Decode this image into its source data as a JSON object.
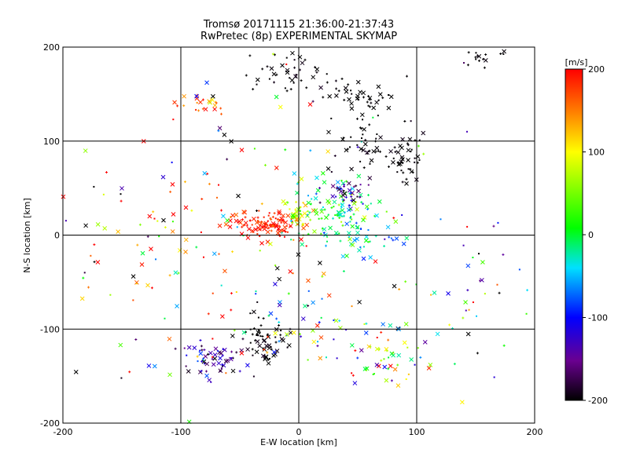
{
  "chart_data": {
    "type": "scatter",
    "title": "Tromsø 20171115 21:36:00-21:37:43",
    "subtitle": "RwPretec (8p) EXPERIMENTAL SKYMAP",
    "xlabel": "E-W location [km]",
    "ylabel": "N-S location [km]",
    "xlim": [
      -200,
      200
    ],
    "ylim": [
      -200,
      200
    ],
    "xticks": [
      "-200",
      "-100",
      "0",
      "100",
      "200"
    ],
    "yticks": [
      "-200",
      "-100",
      "0",
      "100",
      "200"
    ],
    "grid": true,
    "colorbar": {
      "label": "[m/s]",
      "range": [
        -200,
        200
      ],
      "ticks": [
        "-200",
        "-100",
        "0",
        "100",
        "200"
      ],
      "colormap": "rainbow (black-purple-blue-cyan-green-yellow-red)"
    },
    "clusters": [
      {
        "cx": -25,
        "cy": 12,
        "sx": 14,
        "sy": 7,
        "n": 110,
        "v": 185,
        "vs": 15
      },
      {
        "cx": -2,
        "cy": 22,
        "sx": 6,
        "sy": 8,
        "n": 45,
        "v": 100,
        "vs": 40
      },
      {
        "cx": 30,
        "cy": 25,
        "sx": 18,
        "sy": 18,
        "n": 110,
        "v": 0,
        "vs": 40
      },
      {
        "cx": 40,
        "cy": 45,
        "sx": 8,
        "sy": 8,
        "n": 35,
        "v": -150,
        "vs": 30
      },
      {
        "cx": 55,
        "cy": 0,
        "sx": 15,
        "sy": 14,
        "n": 40,
        "v": -40,
        "vs": 60
      },
      {
        "cx": 60,
        "cy": 95,
        "sx": 15,
        "sy": 12,
        "n": 40,
        "v": -200,
        "vs": 5
      },
      {
        "cx": 90,
        "cy": 80,
        "sx": 8,
        "sy": 12,
        "n": 45,
        "v": -200,
        "vs": 5
      },
      {
        "cx": 55,
        "cy": 150,
        "sx": 18,
        "sy": 12,
        "n": 45,
        "v": -200,
        "vs": 5
      },
      {
        "cx": -15,
        "cy": 175,
        "sx": 20,
        "sy": 10,
        "n": 40,
        "v": -200,
        "vs": 5
      },
      {
        "cx": 155,
        "cy": 190,
        "sx": 8,
        "sy": 6,
        "n": 15,
        "v": -200,
        "vs": 5
      },
      {
        "cx": -80,
        "cy": 140,
        "sx": 12,
        "sy": 6,
        "n": 22,
        "v": 160,
        "vs": 40
      },
      {
        "cx": -28,
        "cy": -112,
        "sx": 10,
        "sy": 16,
        "n": 65,
        "v": -200,
        "vs": 8
      },
      {
        "cx": -75,
        "cy": -135,
        "sx": 14,
        "sy": 10,
        "n": 55,
        "v": -150,
        "vs": 40
      },
      {
        "cx": 70,
        "cy": -130,
        "sx": 25,
        "sy": 15,
        "n": 50,
        "v": 60,
        "vs": 100
      },
      {
        "cx": 15,
        "cy": -90,
        "sx": 30,
        "sy": 25,
        "n": 50,
        "v": 20,
        "vs": 120
      },
      {
        "cx": -100,
        "cy": 20,
        "sx": 50,
        "sy": 50,
        "n": 60,
        "v": 150,
        "vs": 80
      },
      {
        "cx": 0,
        "cy": 0,
        "sx": 110,
        "sy": 110,
        "n": 110,
        "v": 0,
        "vs": 200
      },
      {
        "cx": 150,
        "cy": -60,
        "sx": 30,
        "sy": 40,
        "n": 30,
        "v": 0,
        "vs": 150
      },
      {
        "cx": -140,
        "cy": -60,
        "sx": 40,
        "sy": 40,
        "n": 35,
        "v": 50,
        "vs": 150
      }
    ]
  }
}
